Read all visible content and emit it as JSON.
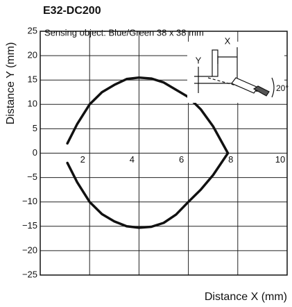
{
  "chart_data": {
    "type": "line",
    "title": "E32-DC200",
    "annotation": "Sensing object: Blue/Green 38 x 38 mm",
    "inset_labels": [
      "X",
      "Y",
      "20°"
    ],
    "xlabel": "Distance X (mm)",
    "ylabel": "Distance Y (mm)",
    "xlim": [
      0,
      10
    ],
    "ylim": [
      -25,
      25
    ],
    "xticks": [
      2,
      4,
      6,
      8,
      10
    ],
    "yticks": [
      {
        "value": -25,
        "label": "−25"
      },
      {
        "value": -20,
        "label": "−20"
      },
      {
        "value": -15,
        "label": "−15"
      },
      {
        "value": -10,
        "label": "−10"
      },
      {
        "value": -5,
        "label": "−5"
      },
      0,
      5,
      10,
      15,
      20,
      25
    ],
    "grid": true,
    "series": [
      {
        "color": "#111111",
        "x": [
          1.1,
          1.5,
          2,
          2.5,
          3,
          3.5,
          4,
          4.5,
          5,
          5.5,
          6,
          6.5,
          7,
          7.6
        ],
        "values": [
          2,
          6,
          10,
          12.5,
          14,
          15.2,
          15.5,
          15.3,
          14.5,
          13,
          11.5,
          9,
          5.5,
          0
        ]
      },
      {
        "color": "#111111",
        "x": [
          1.1,
          1.5,
          2,
          2.5,
          3,
          3.5,
          4,
          4.5,
          5,
          5.5,
          6,
          6.5,
          7,
          7.6
        ],
        "values": [
          -2,
          -6,
          -10,
          -12.5,
          -14,
          -15,
          -15.3,
          -15.1,
          -14.3,
          -12.6,
          -10,
          -7.5,
          -4.5,
          0
        ]
      }
    ]
  }
}
